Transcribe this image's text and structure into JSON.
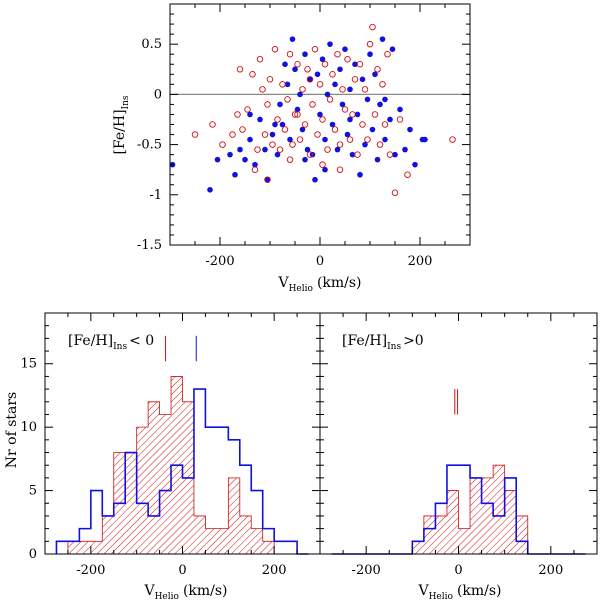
{
  "chart_data": [
    {
      "type": "scatter",
      "xlabel": "V",
      "xlabel_sub": "Helio",
      "xlabel_unit": "(km/s)",
      "ylabel": "[Fe/H]",
      "ylabel_sub": "Ins",
      "xlim": [
        -300,
        300
      ],
      "ylim": [
        -1.5,
        0.9
      ],
      "xticks": [
        -200,
        0,
        200
      ],
      "yticks": [
        0.5,
        0,
        -0.5,
        -1,
        -1.5
      ],
      "xtick_labels": [
        "-200",
        "0",
        "200"
      ],
      "ytick_labels": [
        "0.5",
        "0",
        "-0.5",
        "-1",
        "-1.5"
      ],
      "reference_line_y": 0,
      "series": [
        {
          "name": "filled",
          "marker": "filled-circle",
          "color": "#1010e0",
          "points": [
            [
              -295,
              -0.7
            ],
            [
              -220,
              -0.95
            ],
            [
              -205,
              -0.65
            ],
            [
              -180,
              -0.6
            ],
            [
              -170,
              -0.8
            ],
            [
              -160,
              -0.55
            ],
            [
              -150,
              -0.65
            ],
            [
              -140,
              -0.45
            ],
            [
              -130,
              -0.7
            ],
            [
              -120,
              -0.25
            ],
            [
              -110,
              -0.55
            ],
            [
              -105,
              -0.85
            ],
            [
              -95,
              -0.4
            ],
            [
              -85,
              -0.6
            ],
            [
              -80,
              -0.1
            ],
            [
              -75,
              -0.3
            ],
            [
              -70,
              0.3
            ],
            [
              -65,
              0.1
            ],
            [
              -60,
              -0.45
            ],
            [
              -55,
              0.55
            ],
            [
              -50,
              0.25
            ],
            [
              -45,
              -0.15
            ],
            [
              -40,
              0.0
            ],
            [
              -35,
              -0.35
            ],
            [
              -30,
              0.4
            ],
            [
              -25,
              -0.55
            ],
            [
              -20,
              0.15
            ],
            [
              -15,
              -0.6
            ],
            [
              -10,
              -0.85
            ],
            [
              -5,
              0.2
            ],
            [
              0,
              -0.2
            ],
            [
              5,
              0.35
            ],
            [
              10,
              -0.45
            ],
            [
              15,
              0.0
            ],
            [
              20,
              0.5
            ],
            [
              25,
              -0.3
            ],
            [
              30,
              0.1
            ],
            [
              35,
              -0.55
            ],
            [
              40,
              0.25
            ],
            [
              45,
              -0.1
            ],
            [
              50,
              0.45
            ],
            [
              55,
              -0.4
            ],
            [
              60,
              0.05
            ],
            [
              65,
              -0.6
            ],
            [
              70,
              0.3
            ],
            [
              75,
              -0.2
            ],
            [
              80,
              -0.8
            ],
            [
              85,
              0.15
            ],
            [
              90,
              -0.5
            ],
            [
              95,
              -0.05
            ],
            [
              100,
              0.4
            ],
            [
              105,
              -0.35
            ],
            [
              110,
              0.2
            ],
            [
              115,
              -0.65
            ],
            [
              120,
              -0.1
            ],
            [
              125,
              0.55
            ],
            [
              130,
              -0.45
            ],
            [
              140,
              -0.25
            ],
            [
              145,
              0.45
            ],
            [
              150,
              -0.6
            ],
            [
              160,
              -0.15
            ],
            [
              170,
              -0.55
            ],
            [
              180,
              -0.35
            ],
            [
              190,
              -0.7
            ],
            [
              205,
              -0.45
            ],
            [
              210,
              -0.45
            ],
            [
              -30,
              -0.65
            ],
            [
              -90,
              -0.3
            ],
            [
              10,
              -0.75
            ],
            [
              60,
              -0.25
            ],
            [
              -140,
              -0.2
            ],
            [
              130,
              -0.05
            ]
          ]
        },
        {
          "name": "open",
          "marker": "open-circle",
          "color": "#d01010",
          "points": [
            [
              -250,
              -0.4
            ],
            [
              -215,
              -0.3
            ],
            [
              -195,
              -0.5
            ],
            [
              -175,
              -0.4
            ],
            [
              -165,
              -0.2
            ],
            [
              -160,
              0.25
            ],
            [
              -155,
              -0.35
            ],
            [
              -145,
              -0.15
            ],
            [
              -135,
              0.2
            ],
            [
              -125,
              -0.55
            ],
            [
              -120,
              0.35
            ],
            [
              -115,
              0.05
            ],
            [
              -110,
              -0.4
            ],
            [
              -105,
              -0.1
            ],
            [
              -100,
              0.15
            ],
            [
              -95,
              -0.5
            ],
            [
              -90,
              0.45
            ],
            [
              -85,
              -0.25
            ],
            [
              -80,
              -0.55
            ],
            [
              -75,
              0.1
            ],
            [
              -70,
              -0.35
            ],
            [
              -65,
              -0.05
            ],
            [
              -60,
              0.4
            ],
            [
              -55,
              -0.5
            ],
            [
              -50,
              -0.2
            ],
            [
              -45,
              0.3
            ],
            [
              -40,
              -0.45
            ],
            [
              -35,
              0.05
            ],
            [
              -30,
              -0.3
            ],
            [
              -25,
              0.25
            ],
            [
              -20,
              -0.6
            ],
            [
              -15,
              -0.1
            ],
            [
              -10,
              0.45
            ],
            [
              -5,
              -0.4
            ],
            [
              0,
              0.1
            ],
            [
              5,
              -0.25
            ],
            [
              10,
              0.3
            ],
            [
              15,
              -0.55
            ],
            [
              20,
              -0.05
            ],
            [
              25,
              0.2
            ],
            [
              30,
              -0.35
            ],
            [
              35,
              0.4
            ],
            [
              40,
              -0.5
            ],
            [
              45,
              0.05
            ],
            [
              50,
              -0.15
            ],
            [
              55,
              0.35
            ],
            [
              60,
              -0.45
            ],
            [
              65,
              -0.2
            ],
            [
              70,
              0.15
            ],
            [
              75,
              -0.6
            ],
            [
              80,
              0.3
            ],
            [
              85,
              -0.3
            ],
            [
              90,
              0.05
            ],
            [
              95,
              -0.45
            ],
            [
              100,
              0.5
            ],
            [
              105,
              0.67
            ],
            [
              110,
              -0.2
            ],
            [
              115,
              0.25
            ],
            [
              120,
              -0.5
            ],
            [
              125,
              0.1
            ],
            [
              130,
              -0.3
            ],
            [
              135,
              0.4
            ],
            [
              140,
              -0.6
            ],
            [
              150,
              -0.98
            ],
            [
              160,
              -0.25
            ],
            [
              175,
              -0.8
            ],
            [
              265,
              -0.45
            ],
            [
              -105,
              -0.85
            ],
            [
              -130,
              -0.75
            ],
            [
              -60,
              -0.65
            ],
            [
              5,
              -0.7
            ],
            [
              40,
              -0.75
            ],
            [
              -20,
              0.15
            ],
            [
              -45,
              -0.2
            ]
          ]
        }
      ]
    },
    {
      "type": "histogram",
      "panel": "left",
      "title": "[Fe/H]",
      "title_sub": "Ins",
      "title_suffix": "< 0",
      "xlabel": "V",
      "xlabel_sub": "Helio",
      "xlabel_unit": "(km/s)",
      "ylabel": "Nr of stars",
      "xlim": [
        -300,
        300
      ],
      "ylim": [
        0,
        19
      ],
      "xticks": [
        -200,
        0,
        200
      ],
      "xtick_labels": [
        "-200",
        "0",
        "200"
      ],
      "yticks": [
        0,
        5,
        10,
        15
      ],
      "ytick_labels": [
        "0",
        "5",
        "10",
        "15"
      ],
      "bins_start": -275,
      "bin_width": 25,
      "series": [
        {
          "name": "hatched",
          "style": "hatched",
          "color": "#d01010",
          "values": [
            0,
            1,
            1,
            1,
            3,
            8,
            8,
            10,
            12,
            11,
            14,
            12,
            3,
            2,
            2,
            6,
            3,
            2,
            1,
            0,
            0,
            0
          ]
        },
        {
          "name": "blue-outline",
          "style": "step",
          "color": "#1010e0",
          "values": [
            1,
            1,
            2,
            5,
            3,
            4,
            8,
            4,
            3,
            5,
            7,
            6,
            13,
            10,
            10,
            9,
            7,
            5,
            2,
            1,
            1,
            0
          ]
        }
      ],
      "markers": [
        {
          "x": -37,
          "color": "#d01010",
          "y_from": 15.2,
          "y_to": 17.2
        },
        {
          "x": 30,
          "color": "#1010e0",
          "y_from": 15.2,
          "y_to": 17.2
        }
      ]
    },
    {
      "type": "histogram",
      "panel": "right",
      "title": "[Fe/H]",
      "title_sub": "Ins",
      "title_suffix": ">0",
      "xlabel": "V",
      "xlabel_sub": "Helio",
      "xlabel_unit": "(km/s)",
      "xlim": [
        -300,
        300
      ],
      "ylim": [
        0,
        19
      ],
      "xticks": [
        -200,
        0,
        200
      ],
      "xtick_labels": [
        "-200",
        "0",
        "200"
      ],
      "bins_start": -275,
      "bin_width": 25,
      "series": [
        {
          "name": "hatched",
          "style": "hatched",
          "color": "#d01010",
          "values": [
            0,
            0,
            0,
            0,
            0,
            0,
            0,
            1,
            3,
            3,
            5,
            2,
            6,
            6,
            7,
            5,
            3,
            0,
            0,
            0,
            0,
            0
          ]
        },
        {
          "name": "blue-outline",
          "style": "step",
          "color": "#1010e0",
          "values": [
            0,
            0,
            0,
            0,
            0,
            0,
            0,
            1,
            2,
            4,
            7,
            7,
            6,
            4,
            3,
            6,
            1,
            0,
            0,
            0,
            0,
            0
          ]
        }
      ],
      "markers": [
        {
          "x": -8,
          "color": "#d01010",
          "y_from": 11.0,
          "y_to": 13.0
        },
        {
          "x": -2,
          "color": "#d01010",
          "y_from": 11.0,
          "y_to": 13.0
        }
      ]
    }
  ]
}
